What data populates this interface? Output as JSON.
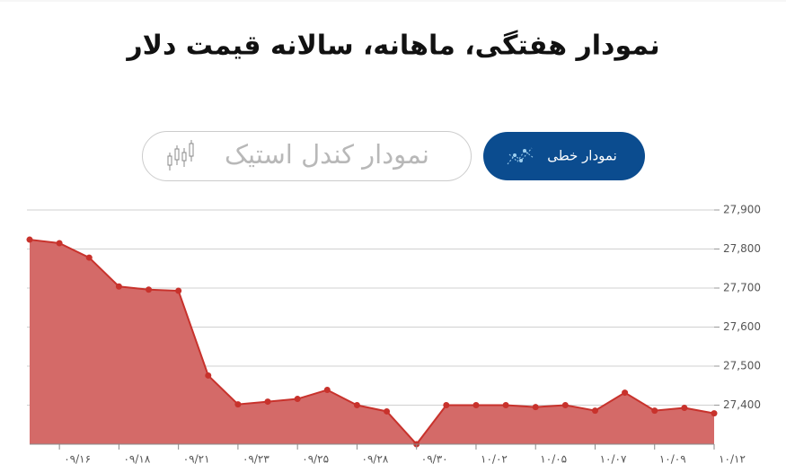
{
  "buttons": [
    "نمودار خطی",
    "نمودار کندل استیک"
  ],
  "chart_data": {
    "type": "area",
    "title": "نمودار هفتگی، ماهانه، سالانه قیمت دلار",
    "categories": [
      null,
      "۰۹/۱۶",
      null,
      "۰۹/۱۸",
      null,
      "۰۹/۲۱",
      null,
      "۰۹/۲۳",
      null,
      "۰۹/۲۵",
      null,
      "۰۹/۲۸",
      null,
      "۰۹/۳۰",
      null,
      "۱۰/۰۲",
      null,
      "۱۰/۰۵",
      null,
      "۱۰/۰۷",
      null,
      "۱۰/۰۹",
      null,
      "۱۰/۱۲"
    ],
    "values": [
      27824,
      27815,
      27778,
      27704,
      27696,
      27693,
      27476,
      27402,
      27409,
      27416,
      27439,
      27400,
      27384,
      27300,
      27400,
      27400,
      27400,
      27395,
      27400,
      27386,
      27432,
      27386,
      27393,
      27379
    ],
    "color": "#c8322c",
    "fill_color": "#d46a68",
    "ylim": [
      27300,
      27900
    ],
    "yticks": [
      {
        "value": 27400,
        "label": "27,400"
      },
      {
        "value": 27500,
        "label": "27,500"
      },
      {
        "value": 27600,
        "label": "27,600"
      },
      {
        "value": 27700,
        "label": "27,700"
      },
      {
        "value": 27800,
        "label": "27,800"
      },
      {
        "value": 27900,
        "label": "27,900"
      }
    ],
    "grid": true
  }
}
